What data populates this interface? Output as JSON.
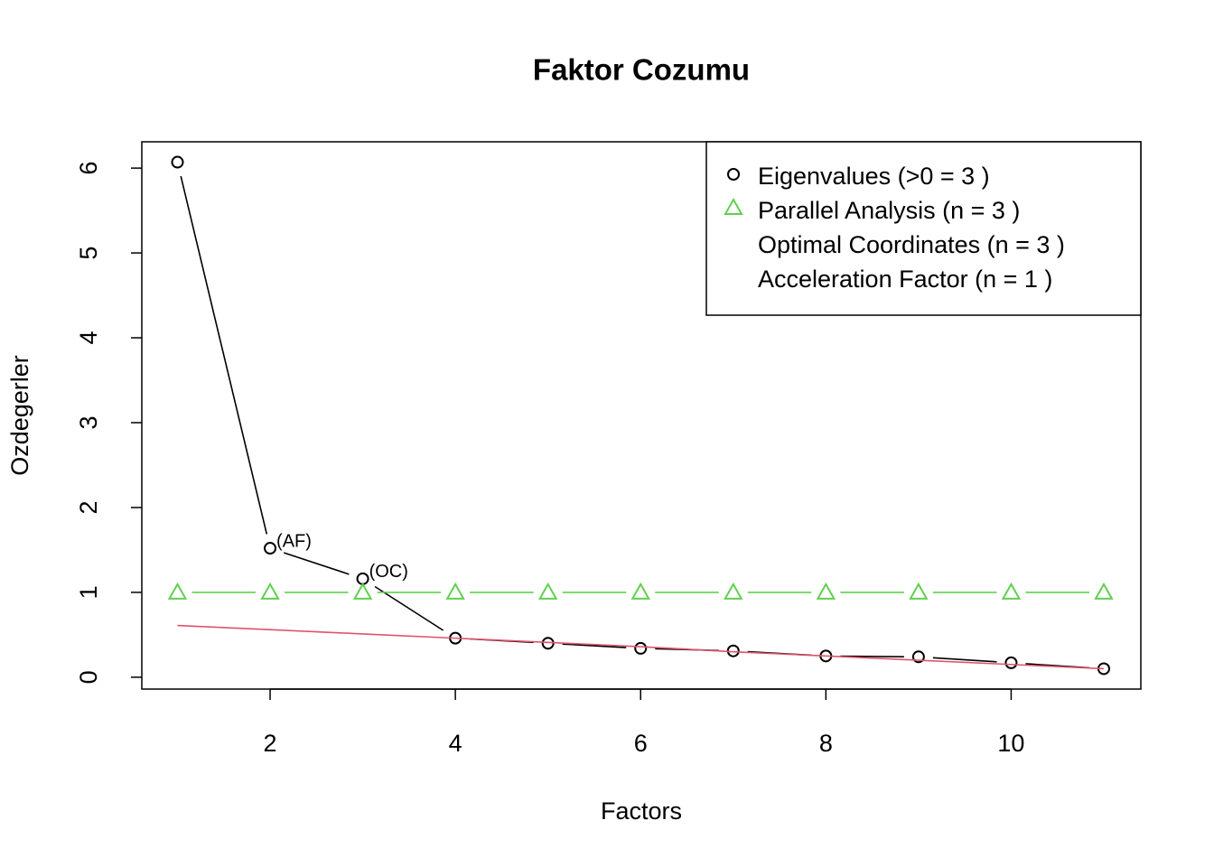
{
  "chart_data": {
    "type": "line",
    "title": "Faktor Cozumu",
    "x_label": "Factors",
    "y_label": "Ozdegerler",
    "x": [
      1,
      2,
      3,
      4,
      5,
      6,
      7,
      8,
      9,
      10,
      11
    ],
    "series": [
      {
        "name": "Eigenvalues (>0 =  3 )",
        "color": "#000000",
        "marker": "circle",
        "values": [
          6.07,
          1.52,
          1.16,
          0.46,
          0.4,
          0.34,
          0.31,
          0.25,
          0.24,
          0.17,
          0.1
        ]
      },
      {
        "name": "Parallel Analysis (n =  3 )",
        "color": "#61d04f",
        "marker": "triangle",
        "values": [
          1,
          1,
          1,
          1,
          1,
          1,
          1,
          1,
          1,
          1,
          1
        ]
      },
      {
        "name": "Optimal Coordinates (n =  3 )",
        "color": "#df536b",
        "marker": "none",
        "values": [
          0.61,
          0.56,
          0.51,
          0.46,
          0.41,
          0.36,
          0.3,
          0.25,
          0.2,
          0.15,
          0.1
        ]
      }
    ],
    "legend_extra": [
      {
        "label": "Acceleration Factor (n =  1 )",
        "color": "#2297e6"
      }
    ],
    "annotations": [
      {
        "text": "(AF)",
        "x": 2,
        "y": 1.52,
        "color": "#2297e6"
      },
      {
        "text": "(OC)",
        "x": 3,
        "y": 1.16,
        "color": "#df536b"
      }
    ],
    "xlim": [
      0.615,
      11.4
    ],
    "ylim": [
      -0.14,
      6.31
    ],
    "xticks": [
      2,
      4,
      6,
      8,
      10
    ],
    "yticks": [
      0,
      1,
      2,
      3,
      4,
      5,
      6
    ],
    "grid": false,
    "legend": "top-right"
  }
}
